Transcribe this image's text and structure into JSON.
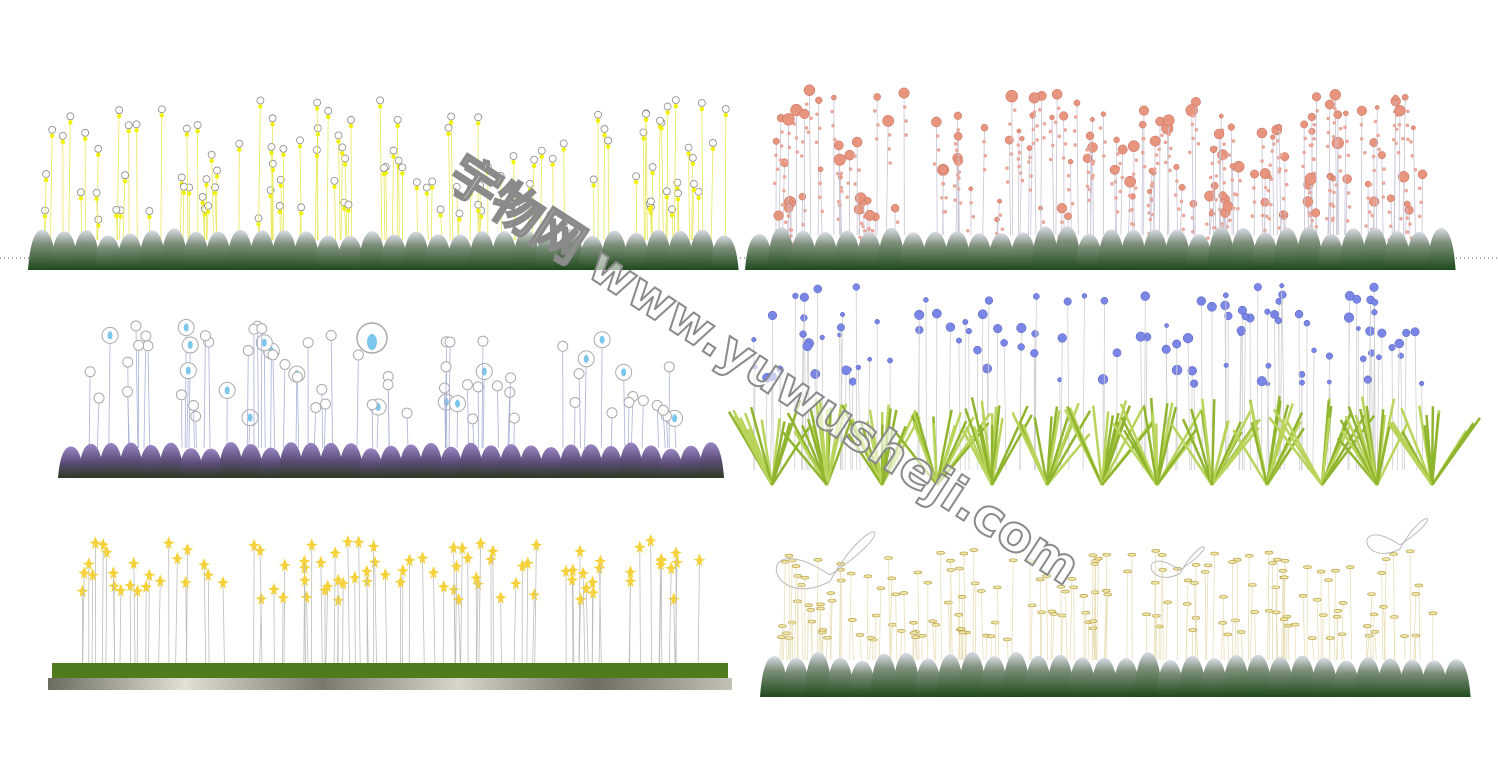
{
  "watermark": "宇物网 www.yuwusheji.com"
}
